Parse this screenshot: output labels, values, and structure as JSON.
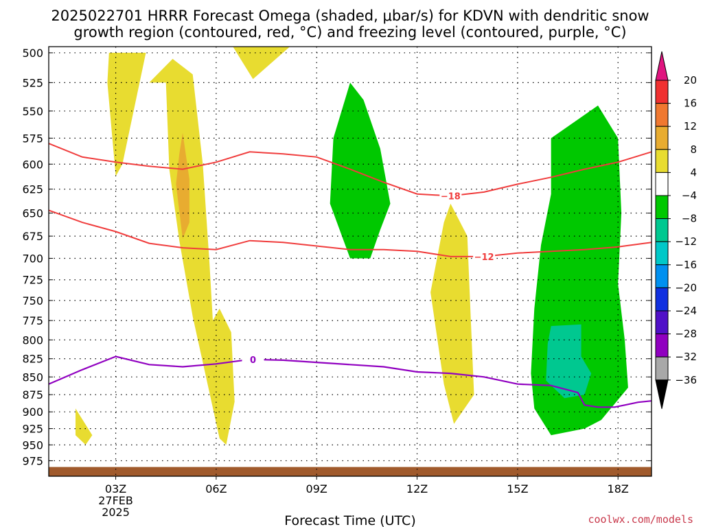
{
  "title_line1": "2025022701 HRRR Forecast Omega (shaded, μbar/s) for KDVN with dendritic snow",
  "title_line2": "growth region (contoured, red, °C) and freezing level (contoured, purple, °C)",
  "credit": "coolwx.com/models",
  "chart_data": {
    "type": "contour",
    "xlabel": "Forecast Time (UTC)",
    "x_ticks": [
      {
        "hour": 3,
        "label": "03Z",
        "sub1": "27FEB",
        "sub2": "2025"
      },
      {
        "hour": 6,
        "label": "06Z"
      },
      {
        "hour": 9,
        "label": "09Z"
      },
      {
        "hour": 12,
        "label": "12Z"
      },
      {
        "hour": 15,
        "label": "15Z"
      },
      {
        "hour": 18,
        "label": "18Z"
      }
    ],
    "xlim": [
      1,
      19
    ],
    "ylim": [
      1000,
      495
    ],
    "y_ticks": [
      500,
      525,
      550,
      575,
      600,
      625,
      650,
      675,
      700,
      725,
      750,
      775,
      800,
      825,
      850,
      875,
      900,
      925,
      950,
      975
    ],
    "colorbar": {
      "levels": [
        "20",
        "16",
        "12",
        "8",
        "4",
        "−4",
        "−8",
        "−12",
        "−16",
        "−20",
        "−24",
        "−28",
        "−32",
        "−36"
      ],
      "colors": [
        "#f03030",
        "#f07830",
        "#e8ac30",
        "#e8dc30",
        "#ffffff",
        "#00c800",
        "#00c890",
        "#00c8c8",
        "#0090f0",
        "#1030e0",
        "#5010c8",
        "#9000c0",
        "#a8a8a8"
      ],
      "top_arrow_color": "#e0147f",
      "bottom_arrow_color": "#000000"
    },
    "omega_regions": [
      {
        "level": "4 to 8",
        "color": "#e8dc30",
        "points": [
          [
            2.8,
            500
          ],
          [
            3.9,
            500
          ],
          [
            3.2,
            600
          ],
          [
            3.0,
            612
          ],
          [
            2.75,
            525
          ]
        ]
      },
      {
        "level": "4 to 8",
        "color": "#e8dc30",
        "points": [
          [
            4.0,
            525
          ],
          [
            4.7,
            505
          ],
          [
            5.3,
            518
          ],
          [
            5.6,
            600
          ],
          [
            5.8,
            705
          ],
          [
            5.9,
            775
          ],
          [
            6.1,
            760
          ],
          [
            6.45,
            790
          ],
          [
            6.55,
            885
          ],
          [
            6.3,
            950
          ],
          [
            6.1,
            940
          ],
          [
            5.3,
            770
          ],
          [
            4.9,
            680
          ],
          [
            4.6,
            605
          ],
          [
            4.5,
            525
          ]
        ]
      },
      {
        "level": "4 to 8",
        "color": "#e8dc30",
        "points": [
          [
            5.6,
            495
          ],
          [
            6.3,
            495
          ],
          [
            8.2,
            495
          ],
          [
            7.1,
            522
          ],
          [
            6.5,
            495
          ]
        ]
      },
      {
        "level": "4 to 8",
        "color": "#e8dc30",
        "points": [
          [
            1.8,
            895
          ],
          [
            2.3,
            935
          ],
          [
            2.1,
            950
          ],
          [
            1.8,
            935
          ]
        ]
      },
      {
        "level": "4 to 8",
        "color": "#e8dc30",
        "points": [
          [
            13.0,
            640
          ],
          [
            13.5,
            675
          ],
          [
            13.6,
            770
          ],
          [
            13.7,
            875
          ],
          [
            13.1,
            918
          ],
          [
            12.8,
            860
          ],
          [
            12.4,
            740
          ],
          [
            12.8,
            660
          ]
        ]
      },
      {
        "level": "8 to 12",
        "color": "#e8ac30",
        "points": [
          [
            5.0,
            570
          ],
          [
            5.2,
            615
          ],
          [
            5.2,
            660
          ],
          [
            5.0,
            678
          ],
          [
            4.8,
            620
          ],
          [
            4.9,
            590
          ]
        ]
      },
      {
        "level": "-8 to -4",
        "color": "#00c800",
        "points": [
          [
            10.0,
            525
          ],
          [
            10.4,
            540
          ],
          [
            10.9,
            585
          ],
          [
            11.2,
            640
          ],
          [
            10.9,
            668
          ],
          [
            10.6,
            700
          ],
          [
            10.0,
            700
          ],
          [
            9.4,
            640
          ],
          [
            9.5,
            575
          ]
        ]
      },
      {
        "level": "-8 to -4",
        "color": "#00c800",
        "points": [
          [
            17.4,
            545
          ],
          [
            18.0,
            575
          ],
          [
            18.1,
            650
          ],
          [
            18.0,
            730
          ],
          [
            18.2,
            800
          ],
          [
            18.3,
            865
          ],
          [
            17.5,
            912
          ],
          [
            17.0,
            925
          ],
          [
            16.0,
            935
          ],
          [
            15.5,
            895
          ],
          [
            15.4,
            845
          ],
          [
            15.5,
            760
          ],
          [
            15.7,
            685
          ],
          [
            16.0,
            630
          ],
          [
            16.0,
            575
          ]
        ]
      },
      {
        "level": "-12 to -8",
        "color": "#00c890",
        "points": [
          [
            16.9,
            780
          ],
          [
            16.9,
            822
          ],
          [
            17.2,
            845
          ],
          [
            17.0,
            875
          ],
          [
            16.4,
            880
          ],
          [
            15.85,
            855
          ],
          [
            15.9,
            805
          ],
          [
            16.0,
            782
          ]
        ]
      }
    ],
    "dgz_label_upper": "−18",
    "dgz_label_lower": "−12",
    "dgz_upper_points": [
      [
        1,
        580
      ],
      [
        2,
        593
      ],
      [
        3,
        598
      ],
      [
        4,
        602
      ],
      [
        5,
        605
      ],
      [
        6,
        598
      ],
      [
        7,
        588
      ],
      [
        8,
        590
      ],
      [
        9,
        593
      ],
      [
        10,
        605
      ],
      [
        11,
        618
      ],
      [
        12,
        630
      ],
      [
        13,
        632
      ],
      [
        14,
        628
      ],
      [
        15,
        620
      ],
      [
        16,
        613
      ],
      [
        17,
        605
      ],
      [
        18,
        598
      ],
      [
        19,
        588
      ]
    ],
    "dgz_lower_points": [
      [
        1,
        647
      ],
      [
        2,
        660
      ],
      [
        3,
        670
      ],
      [
        4,
        683
      ],
      [
        5,
        688
      ],
      [
        6,
        690
      ],
      [
        7,
        680
      ],
      [
        8,
        682
      ],
      [
        9,
        686
      ],
      [
        10,
        690
      ],
      [
        11,
        690
      ],
      [
        12,
        692
      ],
      [
        13,
        698
      ],
      [
        14,
        698
      ],
      [
        15,
        694
      ],
      [
        16,
        692
      ],
      [
        17,
        690
      ],
      [
        18,
        687
      ],
      [
        19,
        682
      ]
    ],
    "freezing_label": "0",
    "freezing_points": [
      [
        1,
        860
      ],
      [
        2,
        840
      ],
      [
        3,
        822
      ],
      [
        4,
        833
      ],
      [
        5,
        836
      ],
      [
        6,
        832
      ],
      [
        7,
        826
      ],
      [
        8,
        827
      ],
      [
        9,
        830
      ],
      [
        10,
        833
      ],
      [
        11,
        836
      ],
      [
        12,
        843
      ],
      [
        13,
        845
      ],
      [
        14,
        850
      ],
      [
        15,
        860
      ],
      [
        16,
        862
      ],
      [
        16.8,
        872
      ],
      [
        17.0,
        890
      ],
      [
        17.4,
        893
      ],
      [
        17.9,
        893
      ],
      [
        18.2,
        890
      ],
      [
        18.6,
        886
      ],
      [
        19,
        884
      ]
    ],
    "terrain_color": "#a05a2c",
    "terrain_top": 985
  }
}
